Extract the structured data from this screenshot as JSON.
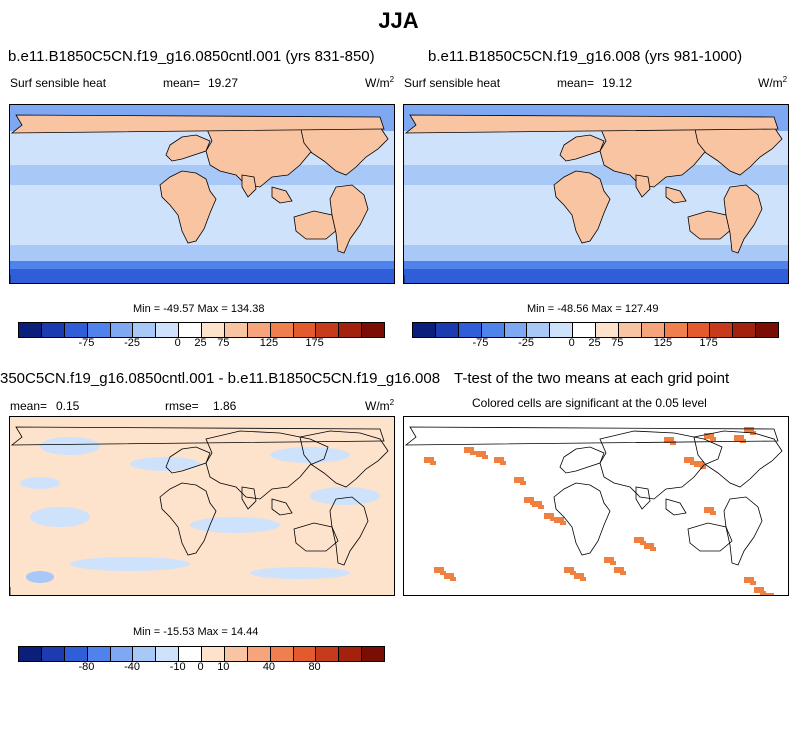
{
  "figure": {
    "title": "JJA"
  },
  "panels": [
    {
      "id": "case1",
      "case_title": "b.e11.B1850C5CN.f19_g16.0850cntl.001 (yrs 831-850)",
      "variable": "Surf sensible heat",
      "stat_label": "mean=",
      "stat_value": "19.27",
      "unit_base": "W/m",
      "unit_exp": "2",
      "min_max": "Min = -49.57 Max = 134.38",
      "colorbar": {
        "colors": [
          "#0a1e7a",
          "#1c3bb0",
          "#2f5ed8",
          "#4f82ea",
          "#7ea8f2",
          "#a8c8f8",
          "#cfe2fc",
          "#ffffff",
          "#fde2cc",
          "#f9c4a2",
          "#f5a47c",
          "#ef7f4f",
          "#e25a2e",
          "#c63b1c",
          "#a3220e",
          "#7a0d04"
        ],
        "ticks": [
          "-75",
          "-25",
          "0",
          "25",
          "75",
          "125",
          "175"
        ]
      }
    },
    {
      "id": "case2",
      "case_title": "b.e11.B1850C5CN.f19_g16.008 (yrs 981-1000)",
      "variable": "Surf sensible heat",
      "stat_label": "mean=",
      "stat_value": "19.12",
      "unit_base": "W/m",
      "unit_exp": "2",
      "min_max": "Min = -48.56 Max = 127.49",
      "colorbar": {
        "colors": [
          "#0a1e7a",
          "#1c3bb0",
          "#2f5ed8",
          "#4f82ea",
          "#7ea8f2",
          "#a8c8f8",
          "#cfe2fc",
          "#ffffff",
          "#fde2cc",
          "#f9c4a2",
          "#f5a47c",
          "#ef7f4f",
          "#e25a2e",
          "#c63b1c",
          "#a3220e",
          "#7a0d04"
        ],
        "ticks": [
          "-75",
          "-25",
          "0",
          "25",
          "75",
          "125",
          "175"
        ]
      }
    },
    {
      "id": "difference",
      "case_title": "350C5CN.f19_g16.0850cntl.001 - b.e11.B1850C5CN.f19_g16.008",
      "stat_label": "mean=",
      "stat_value": "0.15",
      "rmse_label": "rmse=",
      "rmse_value": "1.86",
      "unit_base": "W/m",
      "unit_exp": "2",
      "min_max": "Min = -15.53 Max = 14.44",
      "colorbar": {
        "colors": [
          "#0a1e7a",
          "#1c3bb0",
          "#2f5ed8",
          "#4f82ea",
          "#7ea8f2",
          "#a8c8f8",
          "#cfe2fc",
          "#ffffff",
          "#fde2cc",
          "#f9c4a2",
          "#f5a47c",
          "#ef7f4f",
          "#e25a2e",
          "#c63b1c",
          "#a3220e",
          "#7a0d04"
        ],
        "ticks": [
          "-80",
          "-40",
          "-10",
          "0",
          "10",
          "40",
          "80"
        ]
      }
    },
    {
      "id": "ttest",
      "case_title": "T-test of the two means at each grid point",
      "subtitle": "Colored cells are significant at the 0.05 level",
      "significant_color": "#f08040"
    }
  ]
}
